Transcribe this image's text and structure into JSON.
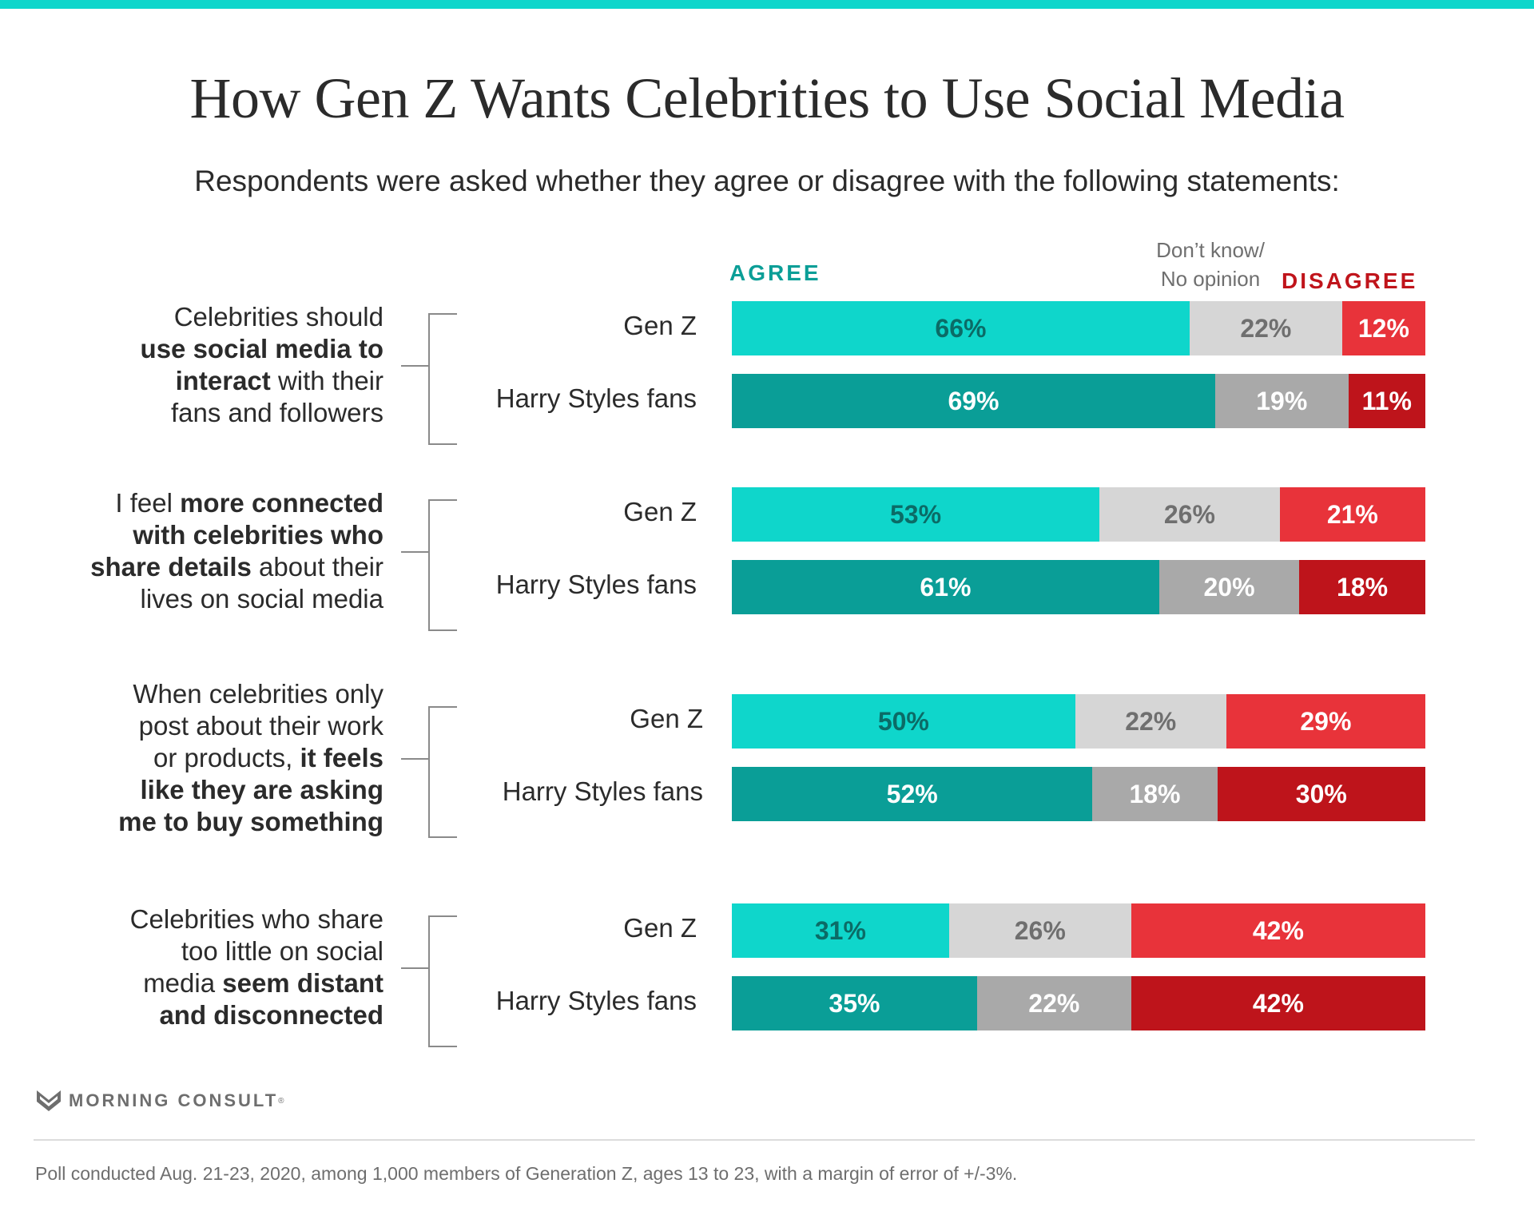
{
  "title": "How Gen Z Wants Celebrities to Use Social Media",
  "subtitle": "Respondents were asked whether they agree or disagree with the following statements:",
  "headers": {
    "agree": "AGREE",
    "dont_know_line1": "Don’t know/",
    "dont_know_line2": "No opinion",
    "disagree": "DISAGREE"
  },
  "colors": {
    "agree_genz": "#0fd6cb",
    "agree_fans": "#0a9e97",
    "neutral_genz": "#d6d6d6",
    "neutral_fans": "#a9a9a9",
    "disagree_genz": "#e8333a",
    "disagree_fans": "#be141b",
    "accent_bar": "#0fd6cb"
  },
  "chart_data": {
    "type": "bar",
    "orientation": "horizontal",
    "stacked": true,
    "title": "How Gen Z Wants Celebrities to Use Social Media",
    "subtitle": "Respondents were asked whether they agree or disagree with the following statements:",
    "legend": [
      "AGREE",
      "Don’t know/ No opinion",
      "DISAGREE"
    ],
    "legend_placement": "top",
    "xlim": [
      0,
      100
    ],
    "statements": [
      {
        "parts": [
          {
            "text": "Celebrities should ",
            "bold": false
          },
          {
            "text": "use social media to interact",
            "bold": true
          },
          {
            "text": " with their fans and followers",
            "bold": false
          }
        ],
        "lines": [
          [
            {
              "t": "Celebrities should",
              "b": false
            }
          ],
          [
            {
              "t": "use social media to",
              "b": true
            }
          ],
          [
            {
              "t": "interact",
              "b": true
            },
            {
              "t": " with their",
              "b": false
            }
          ],
          [
            {
              "t": "fans and followers",
              "b": false
            }
          ]
        ],
        "rows": [
          {
            "group": "Gen Z",
            "agree": 66,
            "neutral": 22,
            "disagree": 12,
            "labels": [
              "66%",
              "22%",
              "12%"
            ]
          },
          {
            "group": "Harry Styles fans",
            "agree": 69,
            "neutral": 19,
            "disagree": 11,
            "labels": [
              "69%",
              "19%",
              "11%"
            ]
          }
        ]
      },
      {
        "lines": [
          [
            {
              "t": "I feel ",
              "b": false
            },
            {
              "t": "more connected",
              "b": true
            }
          ],
          [
            {
              "t": "with celebrities who",
              "b": true
            }
          ],
          [
            {
              "t": "share details",
              "b": true
            },
            {
              "t": " about their",
              "b": false
            }
          ],
          [
            {
              "t": "lives on social media",
              "b": false
            }
          ]
        ],
        "rows": [
          {
            "group": "Gen Z",
            "agree": 53,
            "neutral": 26,
            "disagree": 21,
            "labels": [
              "53%",
              "26%",
              "21%"
            ]
          },
          {
            "group": "Harry Styles fans",
            "agree": 61,
            "neutral": 20,
            "disagree": 18,
            "labels": [
              "61%",
              "20%",
              "18%"
            ]
          }
        ]
      },
      {
        "lines": [
          [
            {
              "t": "When celebrities only",
              "b": false
            }
          ],
          [
            {
              "t": "post about their work",
              "b": false
            }
          ],
          [
            {
              "t": "or products, ",
              "b": false
            },
            {
              "t": "it feels",
              "b": true
            }
          ],
          [
            {
              "t": "like they are asking",
              "b": true
            }
          ],
          [
            {
              "t": "me to buy something",
              "b": true
            }
          ]
        ],
        "rows": [
          {
            "group": "Gen Z",
            "agree": 50,
            "neutral": 22,
            "disagree": 29,
            "labels": [
              "50%",
              "22%",
              "29%"
            ]
          },
          {
            "group": "Harry Styles fans",
            "agree": 52,
            "neutral": 18,
            "disagree": 30,
            "labels": [
              "52%",
              "18%",
              "30%"
            ]
          }
        ]
      },
      {
        "lines": [
          [
            {
              "t": "Celebrities who share",
              "b": false
            }
          ],
          [
            {
              "t": "too little on social",
              "b": false
            }
          ],
          [
            {
              "t": "media ",
              "b": false
            },
            {
              "t": "seem distant",
              "b": true
            }
          ],
          [
            {
              "t": "and disconnected",
              "b": true
            }
          ]
        ],
        "rows": [
          {
            "group": "Gen Z",
            "agree": 31,
            "neutral": 26,
            "disagree": 42,
            "labels": [
              "31%",
              "26%",
              "42%"
            ]
          },
          {
            "group": "Harry Styles fans",
            "agree": 35,
            "neutral": 22,
            "disagree": 42,
            "labels": [
              "35%",
              "22%",
              "42%"
            ]
          }
        ]
      }
    ]
  },
  "footer": {
    "logo_text": "MORNING CONSULT",
    "logo_mark": "®",
    "note": "Poll conducted Aug. 21-23, 2020, among 1,000 members of Generation Z, ages 13 to 23, with a margin of error of +/-3%."
  }
}
